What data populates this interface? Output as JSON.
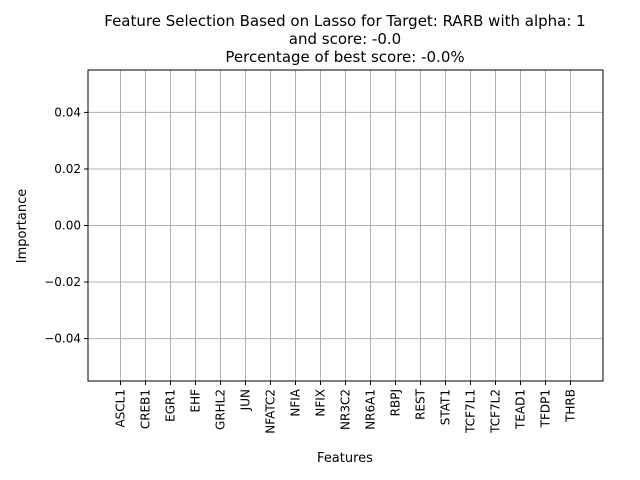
{
  "chart_data": {
    "type": "bar",
    "title_lines": [
      "Feature Selection Based on Lasso for Target: RARB with alpha: 1",
      "and score: -0.0",
      "Percentage of best score: -0.0%"
    ],
    "xlabel": "Features",
    "ylabel": "Importance",
    "categories": [
      "ASCL1",
      "CREB1",
      "EGR1",
      "EHF",
      "GRHL2",
      "JUN",
      "NFATC2",
      "NFIA",
      "NFIX",
      "NR3C2",
      "NR6A1",
      "RBPJ",
      "REST",
      "STAT1",
      "TCF7L1",
      "TCF7L2",
      "TEAD1",
      "TFDP1",
      "THRB"
    ],
    "values": [
      0,
      0,
      0,
      0,
      0,
      0,
      0,
      0,
      0,
      0,
      0,
      0,
      0,
      0,
      0,
      0,
      0,
      0,
      0
    ],
    "ylim": [
      -0.055,
      0.055
    ],
    "yticks": [
      -0.04,
      -0.02,
      0.0,
      0.02,
      0.04
    ],
    "ytick_labels": [
      "−0.04",
      "−0.02",
      "0.00",
      "0.02",
      "0.04"
    ],
    "grid": true,
    "colors": {
      "grid": "#b0b0b0",
      "axis": "#000000",
      "bar": "#1f77b4"
    }
  }
}
